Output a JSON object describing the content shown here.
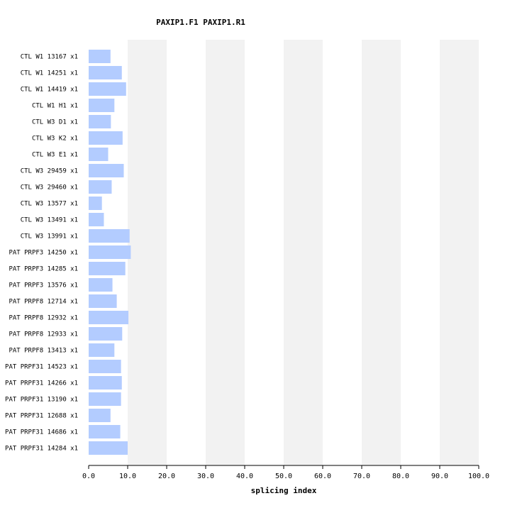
{
  "chart_data": {
    "type": "bar",
    "orientation": "horizontal",
    "title": "PAXIP1.F1  PAXIP1.R1",
    "xlabel": "splicing index",
    "xlim": [
      0,
      100
    ],
    "xticks": [
      "0.0",
      "10.0",
      "20.0",
      "30.0",
      "40.0",
      "50.0",
      "60.0",
      "70.0",
      "80.0",
      "90.0",
      "100.0"
    ],
    "bar_color": "#b3ccff",
    "band_color": "#f2f2f2",
    "categories": [
      "CTL W1 13167 x1",
      "CTL W1 14251 x1",
      "CTL W1 14419 x1",
      "CTL W1 H1 x1",
      "CTL W3 D1 x1",
      "CTL W3 K2 x1",
      "CTL W3 E1 x1",
      "CTL W3 29459 x1",
      "CTL W3 29460 x1",
      "CTL W3 13577 x1",
      "CTL W3 13491 x1",
      "CTL W3 13991 x1",
      "PAT PRPF3 14250 x1",
      "PAT PRPF3 14285 x1",
      "PAT PRPF3 13576 x1",
      "PAT PRPF8 12714 x1",
      "PAT PRPF8 12932 x1",
      "PAT PRPF8 12933 x1",
      "PAT PRPF8 13413 x1",
      "PAT PRPF31 14523 x1",
      "PAT PRPF31 14266 x1",
      "PAT PRPF31 13190 x1",
      "PAT PRPF31 12688 x1",
      "PAT PRPF31 14686 x1",
      "PAT PRPF31 14284 x1"
    ],
    "values": [
      5.6,
      8.5,
      9.6,
      6.6,
      5.7,
      8.7,
      5.0,
      9.0,
      5.9,
      3.4,
      3.9,
      10.5,
      10.8,
      9.4,
      6.1,
      7.2,
      10.2,
      8.6,
      6.6,
      8.3,
      8.5,
      8.3,
      5.6,
      8.1,
      10.0
    ]
  }
}
